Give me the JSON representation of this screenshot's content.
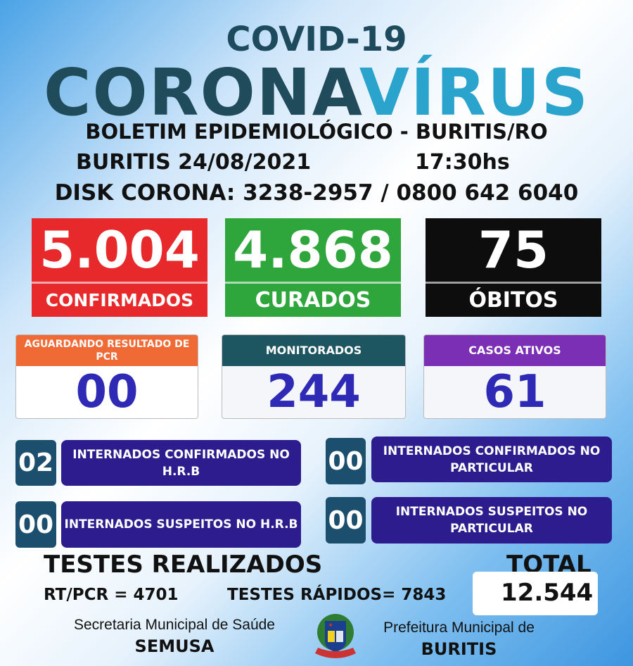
{
  "header": {
    "subtitle": "COVID-19",
    "title_a": "CORONA",
    "title_b": "VÍRUS",
    "bulletin": "BOLETIM EPIDEMIOLÓGICO - BURITIS/RO",
    "date": "BURITIS 24/08/2021",
    "time": "17:30hs",
    "phone": "DISK CORONA: 3238-2957 / 0800 642 6040"
  },
  "main_stats": [
    {
      "value": "5.004",
      "label": "CONFIRMADOS",
      "color": "#e8292b"
    },
    {
      "value": "4.868",
      "label": "CURADOS",
      "color": "#2ea63c"
    },
    {
      "value": "75",
      "label": "ÓBITOS",
      "color": "#0d0d0d"
    }
  ],
  "cards": [
    {
      "title": "AGUARDANDO RESULTADO DE PCR",
      "value": "00",
      "color": "#ef6a35"
    },
    {
      "title": "MONITORADOS",
      "value": "244",
      "color": "#1d5560"
    },
    {
      "title": "CASOS ATIVOS",
      "value": "61",
      "color": "#7a2fb5"
    }
  ],
  "hospital": [
    {
      "value": "02",
      "label": "INTERNADOS CONFIRMADOS NO H.R.B"
    },
    {
      "value": "00",
      "label": "INTERNADOS CONFIRMADOS NO PARTICULAR"
    },
    {
      "value": "00",
      "label": "INTERNADOS SUSPEITOS NO H.R.B"
    },
    {
      "value": "00",
      "label": "INTERNADOS SUSPEITOS NO PARTICULAR"
    }
  ],
  "tests": {
    "title": "TESTES REALIZADOS",
    "rtpcr": "RT/PCR = 4701",
    "rapid": "TESTES RÁPIDOS= 7843",
    "total_label": "TOTAL",
    "total": "12.544"
  },
  "footer": {
    "secretaria": "Secretaria Municipal de Saúde",
    "semusa": "SEMUSA",
    "prefeitura": "Prefeitura Municipal de",
    "city": "BURITIS",
    "logo_icon": "buritis-coat-of-arms"
  }
}
